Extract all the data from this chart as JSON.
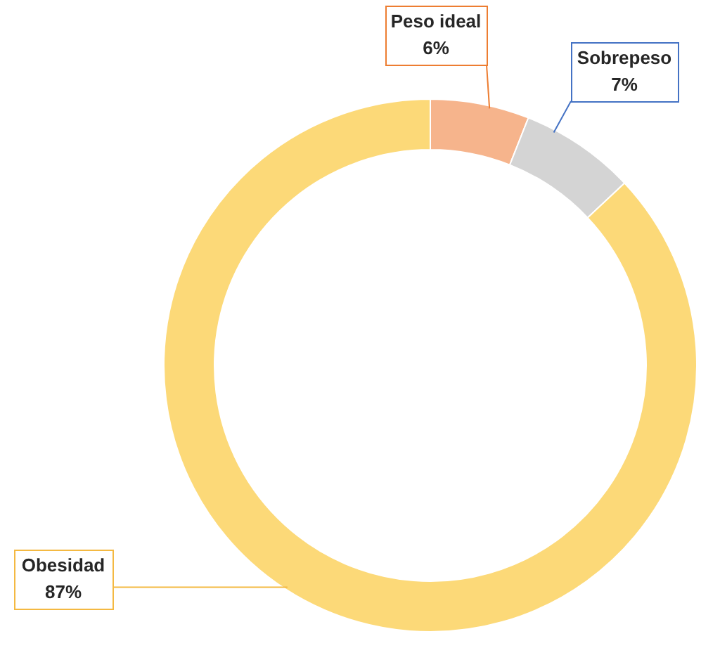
{
  "chart_data": {
    "type": "donut",
    "categories": [
      "Peso ideal",
      "Sobrepeso",
      "Obesidad"
    ],
    "values": [
      6,
      7,
      87
    ],
    "colors": [
      "#f6b48c",
      "#d4d4d4",
      "#fcd978"
    ],
    "value_labels": [
      "6%",
      "7%",
      "87%"
    ]
  }
}
